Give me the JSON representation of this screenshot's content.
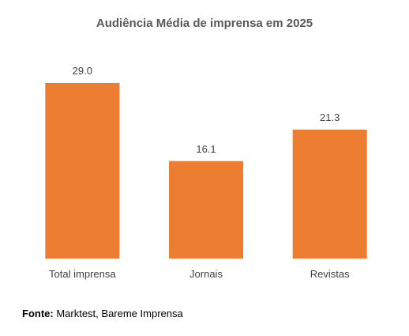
{
  "chart_data": {
    "type": "bar",
    "title": "Audiência Média de imprensa em 2025",
    "categories": [
      "Total imprensa",
      "Jornais",
      "Revistas"
    ],
    "values": [
      29.0,
      16.1,
      21.3
    ],
    "value_labels": [
      "29.0",
      "16.1",
      "21.3"
    ],
    "xlabel": "",
    "ylabel": "",
    "ylim": [
      0,
      29.0
    ],
    "grid": false,
    "legend": "none",
    "bar_color": "#ED7D31"
  },
  "source": {
    "label": "Fonte:",
    "text": " Marktest, Bareme Imprensa"
  }
}
